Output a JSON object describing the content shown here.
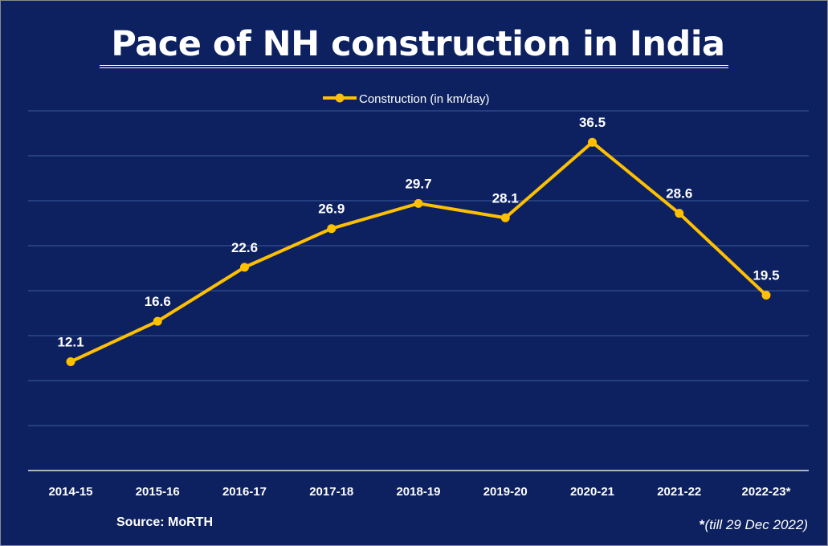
{
  "chart_data": {
    "type": "line",
    "title": "Pace of NH construction in India",
    "categories": [
      "2014-15",
      "2015-16",
      "2016-17",
      "2017-18",
      "2018-19",
      "2019-20",
      "2020-21",
      "2021-22",
      "2022-23*"
    ],
    "series": [
      {
        "name": "Construction (in km/day)",
        "values": [
          12.1,
          16.6,
          22.6,
          26.9,
          29.7,
          28.1,
          36.5,
          28.6,
          19.5
        ],
        "color": "#ffc000"
      }
    ],
    "data_labels": [
      "12.1",
      "16.6",
      "22.6",
      "26.9",
      "29.7",
      "28.1",
      "36.5",
      "28.6",
      "19.5"
    ],
    "xlabel": "",
    "ylabel": "",
    "ylim": [
      0,
      40
    ],
    "grid": true,
    "legend": "top-center",
    "background_color": "#0d2160",
    "gridline_color": "#3a5a9e",
    "text_color": "#ffffff"
  },
  "source": "Source: MoRTH",
  "footnote": {
    "star": "*",
    "text": "(till 29 Dec 2022)"
  }
}
